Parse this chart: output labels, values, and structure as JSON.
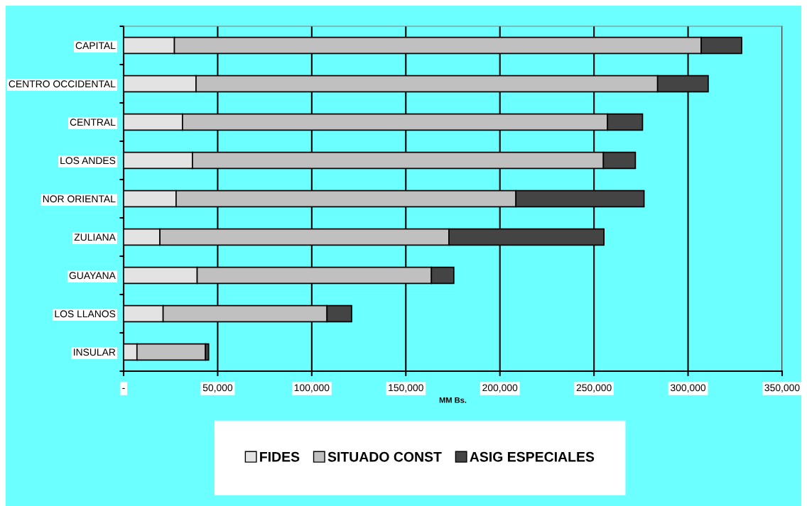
{
  "chart_data": {
    "type": "bar",
    "orientation": "horizontal",
    "stacked": true,
    "xlabel": "MM Bs.",
    "categories": [
      "CAPITAL",
      "CENTRO OCCIDENTAL",
      "CENTRAL",
      "LOS ANDES",
      "NOR ORIENTAL",
      "ZULIANA",
      "GUAYANA",
      "LOS LLANOS",
      "INSULAR"
    ],
    "series": [
      {
        "name": "FIDES",
        "color": "#e3e3e3",
        "values": [
          27000,
          38500,
          31300,
          36600,
          27900,
          19300,
          39100,
          21000,
          7100
        ]
      },
      {
        "name": "SITUADO CONST",
        "color": "#c0c0c0",
        "values": [
          280000,
          245300,
          225900,
          218400,
          180600,
          153600,
          124500,
          87100,
          36400
        ]
      },
      {
        "name": "ASIG ESPECIALES",
        "color": "#444444",
        "values": [
          21500,
          26900,
          18600,
          17000,
          68100,
          82400,
          11900,
          13100,
          1700
        ]
      }
    ],
    "xlim": [
      0,
      350000
    ],
    "xticks": [
      {
        "value": 0,
        "label": "-"
      },
      {
        "value": 50000,
        "label": "50,000"
      },
      {
        "value": 100000,
        "label": "100,000"
      },
      {
        "value": 150000,
        "label": "150,000"
      },
      {
        "value": 200000,
        "label": "200,000"
      },
      {
        "value": 250000,
        "label": "250,000"
      },
      {
        "value": 300000,
        "label": "300,000"
      },
      {
        "value": 350000,
        "label": "350,000"
      }
    ],
    "grid": "x",
    "legend": "bottom"
  }
}
